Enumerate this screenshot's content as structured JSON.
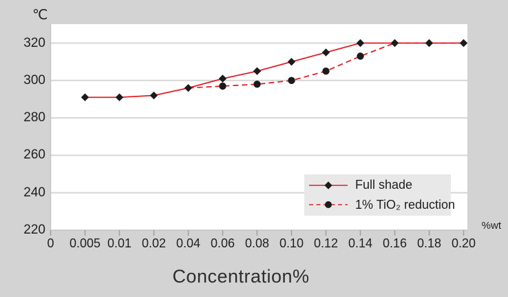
{
  "chart_data": {
    "type": "line",
    "title": "",
    "xlabel": "Concentration%",
    "y_unit": "℃",
    "x_unit": "%wt",
    "x_ticks": [
      "0",
      "0.005",
      "0.01",
      "0.02",
      "0.04",
      "0.06",
      "0.08",
      "0.10",
      "0.12",
      "0.14",
      "0.16",
      "0.18",
      "0.20"
    ],
    "categories": [
      "0.005",
      "0.01",
      "0.02",
      "0.04",
      "0.06",
      "0.08",
      "0.10",
      "0.12",
      "0.14",
      "0.16",
      "0.18",
      "0.20"
    ],
    "y_ticks": [
      220,
      240,
      260,
      280,
      300,
      320
    ],
    "ylim": [
      220,
      320
    ],
    "grid": "horizontal",
    "legend_position": "inside-bottom-right",
    "series": [
      {
        "name": "Full shade",
        "line": "solid",
        "marker": "diamond",
        "values": [
          291,
          291,
          292,
          296,
          301,
          305,
          310,
          315,
          320,
          320,
          320,
          320
        ]
      },
      {
        "name": "1% TiO₂ reduction",
        "line": "dashed",
        "marker": "circle",
        "values": [
          null,
          null,
          null,
          296,
          297,
          298,
          300,
          305,
          313,
          320,
          320,
          320
        ],
        "marker_indices": [
          4,
          5,
          6,
          7,
          8
        ]
      }
    ],
    "colors": {
      "line_red": "#e01f25",
      "marker_black": "#1b1b1b",
      "grid": "#d6d6d6",
      "axis": "#c3c3c3",
      "tick": "#9f9f9f",
      "page_bg": "#d3d3d3",
      "plot_bg": "#ffffff",
      "legend_bg": "#e8e8e8",
      "text": "#1f1f1f"
    }
  }
}
